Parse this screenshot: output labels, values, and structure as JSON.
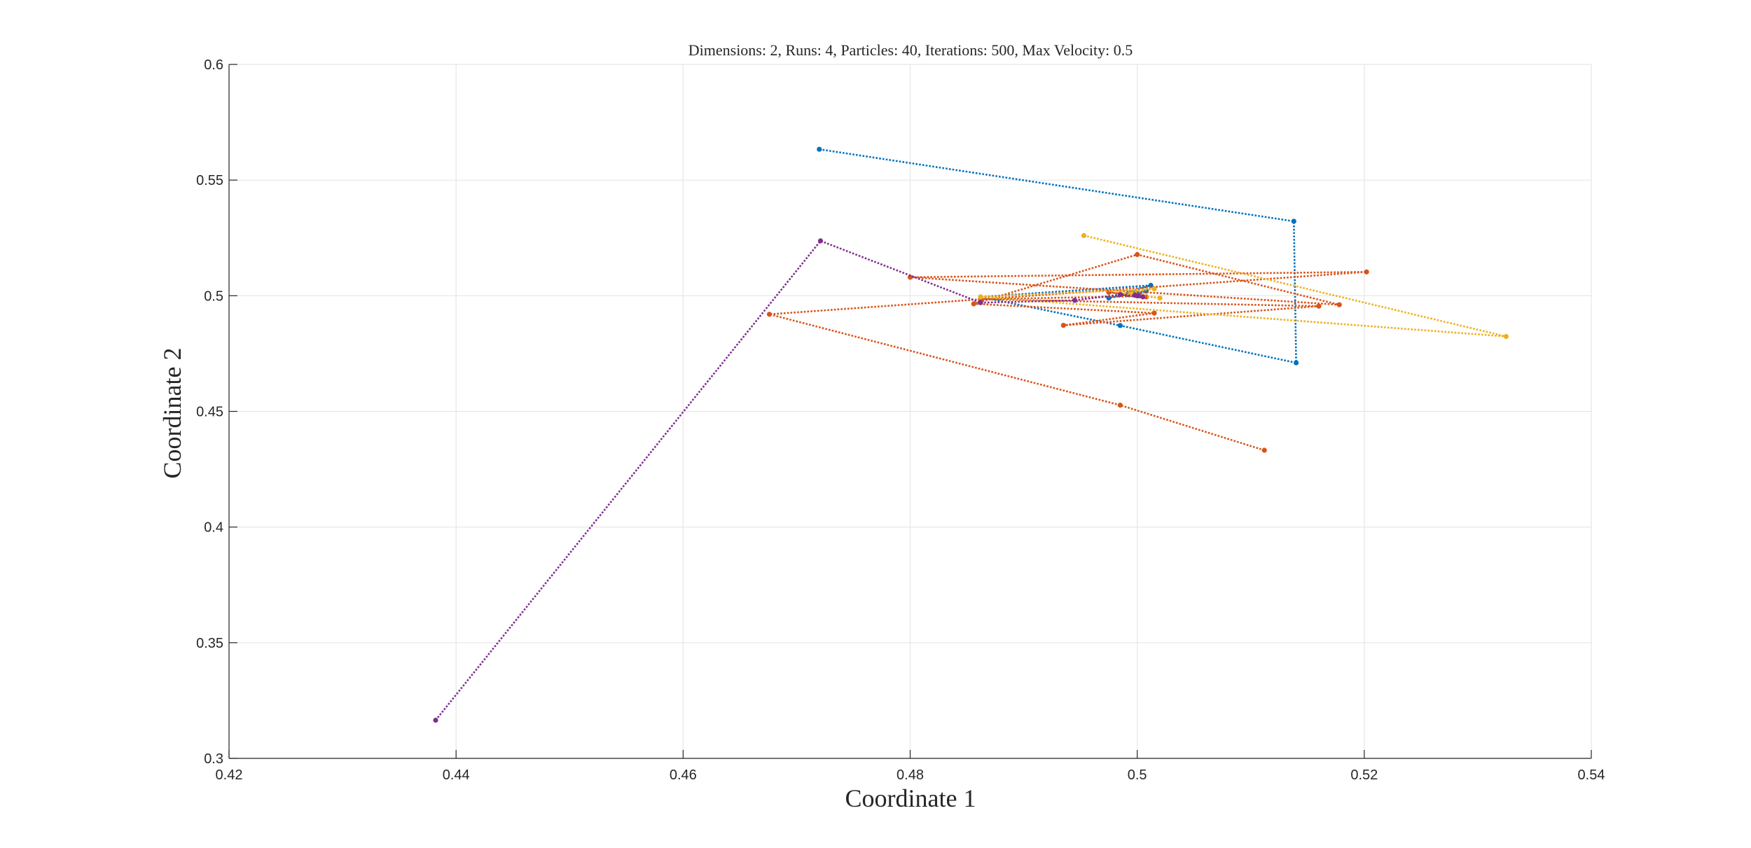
{
  "chart_data": {
    "type": "line",
    "title": "Dimensions: 2, Runs: 4, Particles: 40, Iterations: 500, Max Velocity: 0.5",
    "xlabel": "Coordinate 1",
    "ylabel": "Coordinate 2",
    "xlim": [
      0.42,
      0.54
    ],
    "ylim": [
      0.3,
      0.6
    ],
    "x_ticks": [
      "0.42",
      "0.44",
      "0.46",
      "0.48",
      "0.5",
      "0.52",
      "0.54"
    ],
    "y_ticks": [
      "0.3",
      "0.35",
      "0.4",
      "0.45",
      "0.5",
      "0.55",
      "0.6"
    ],
    "grid": true,
    "line_style": "dotted",
    "marker": "dot",
    "series": [
      {
        "color": "#0072BD",
        "points": [
          [
            0.472,
            0.5633
          ],
          [
            0.5138,
            0.5322
          ],
          [
            0.514,
            0.471
          ],
          [
            0.4985,
            0.4871
          ],
          [
            0.4862,
            0.4995
          ],
          [
            0.5012,
            0.5045
          ],
          [
            0.4975,
            0.499
          ],
          [
            0.5008,
            0.502
          ],
          [
            0.4992,
            0.5005
          ],
          [
            0.5003,
            0.5001
          ],
          [
            0.4998,
            0.5002
          ],
          [
            0.5001,
            0.5
          ],
          [
            0.5,
            0.5
          ]
        ]
      },
      {
        "color": "#D95319",
        "points": [
          [
            0.5112,
            0.4332
          ],
          [
            0.4985,
            0.4527
          ],
          [
            0.4676,
            0.492
          ],
          [
            0.5202,
            0.5103
          ],
          [
            0.48,
            0.508
          ],
          [
            0.5178,
            0.4961
          ],
          [
            0.5,
            0.5178
          ],
          [
            0.4856,
            0.4965
          ],
          [
            0.5015,
            0.4925
          ],
          [
            0.4935,
            0.4872
          ],
          [
            0.516,
            0.4955
          ],
          [
            0.4862,
            0.4985
          ],
          [
            0.5005,
            0.4998
          ],
          [
            0.4975,
            0.5015
          ],
          [
            0.5008,
            0.4995
          ],
          [
            0.4995,
            0.5005
          ],
          [
            0.5002,
            0.4999
          ],
          [
            0.5,
            0.5001
          ],
          [
            0.5,
            0.5
          ]
        ]
      },
      {
        "color": "#EDB120",
        "points": [
          [
            0.4953,
            0.526
          ],
          [
            0.5325,
            0.4824
          ],
          [
            0.4862,
            0.4995
          ],
          [
            0.5015,
            0.503
          ],
          [
            0.4985,
            0.501
          ],
          [
            0.502,
            0.499
          ],
          [
            0.4995,
            0.5008
          ],
          [
            0.5005,
            0.4998
          ],
          [
            0.4999,
            0.5002
          ],
          [
            0.5001,
            0.5
          ],
          [
            0.5,
            0.5
          ]
        ]
      },
      {
        "color": "#7E2F8E",
        "points": [
          [
            0.4382,
            0.3165
          ],
          [
            0.4721,
            0.5237
          ],
          [
            0.4862,
            0.497
          ],
          [
            0.4945,
            0.498
          ],
          [
            0.4985,
            0.5005
          ],
          [
            0.5005,
            0.4995
          ],
          [
            0.4998,
            0.5002
          ],
          [
            0.5001,
            0.5
          ],
          [
            0.5,
            0.5
          ]
        ]
      }
    ]
  }
}
